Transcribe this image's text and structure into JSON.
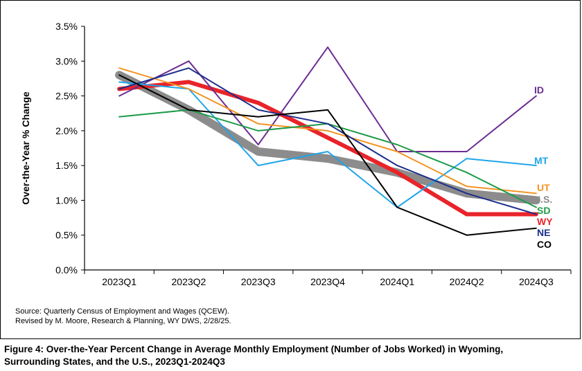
{
  "chart_data": {
    "type": "line",
    "ylabel": "Over-the-Year % Change",
    "xlabel": "",
    "categories": [
      "2023Q1",
      "2023Q2",
      "2023Q3",
      "2023Q4",
      "2024Q1",
      "2024Q2",
      "2024Q3"
    ],
    "ylim": [
      0,
      3.5
    ],
    "yticks": [
      "0.0%",
      "0.5%",
      "1.0%",
      "1.5%",
      "2.0%",
      "2.5%",
      "3.0%",
      "3.5%"
    ],
    "ytick_values": [
      0,
      0.5,
      1.0,
      1.5,
      2.0,
      2.5,
      3.0,
      3.5
    ],
    "grid": false,
    "series": [
      {
        "name": "U.S.",
        "color": "#8c8c8c",
        "width": 12,
        "values": [
          2.8,
          2.3,
          1.7,
          1.6,
          1.4,
          1.1,
          1.0
        ]
      },
      {
        "name": "WY",
        "color": "#e8242a",
        "width": 6,
        "values": [
          2.6,
          2.7,
          2.4,
          1.9,
          1.4,
          0.8,
          0.8
        ]
      },
      {
        "name": "ID",
        "color": "#6a2c91",
        "width": 2,
        "values": [
          2.5,
          3.0,
          1.8,
          3.2,
          1.7,
          1.7,
          2.5
        ]
      },
      {
        "name": "MT",
        "color": "#1fa5e8",
        "width": 2,
        "values": [
          2.7,
          2.6,
          1.5,
          1.7,
          0.9,
          1.6,
          1.5
        ]
      },
      {
        "name": "UT",
        "color": "#f39323",
        "width": 2,
        "values": [
          2.9,
          2.6,
          2.1,
          2.0,
          1.7,
          1.2,
          1.1
        ]
      },
      {
        "name": "SD",
        "color": "#1e9b48",
        "width": 2,
        "values": [
          2.2,
          2.3,
          2.0,
          2.1,
          1.8,
          1.4,
          0.9
        ]
      },
      {
        "name": "NE",
        "color": "#1c2e8c",
        "width": 2,
        "values": [
          2.6,
          2.9,
          2.3,
          2.1,
          1.5,
          1.1,
          0.8
        ]
      },
      {
        "name": "CO",
        "color": "#000000",
        "width": 2,
        "values": [
          2.8,
          2.3,
          2.2,
          2.3,
          0.9,
          0.5,
          0.6
        ]
      }
    ]
  },
  "labels": {
    "ID": "ID",
    "MT": "MT",
    "UT": "UT",
    "US": "U.S.",
    "SD": "SD",
    "WY": "WY",
    "NE": "NE",
    "CO": "CO"
  },
  "source_line1": "Source: Quarterly Census of Employment and Wages (QCEW).",
  "source_line2": "Revised by M. Moore, Research & Planning, WY DWS, 2/28/25.",
  "caption_line1": "Figure 4: Over-the-Year Percent Change in Average Monthly Employment (Number of Jobs Worked) in Wyoming,",
  "caption_line2": "Surrounding States, and the U.S., 2023Q1-2024Q3"
}
